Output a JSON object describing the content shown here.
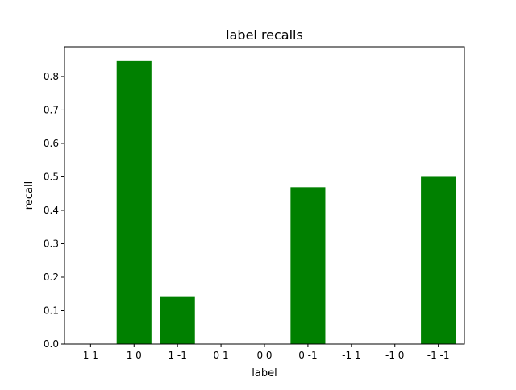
{
  "chart_data": {
    "type": "bar",
    "title": "label recalls",
    "xlabel": "label",
    "ylabel": "recall",
    "categories": [
      "1 1",
      "1 0",
      "1 -1",
      "0 1",
      "0 0",
      "0 -1",
      "-1 1",
      "-1 0",
      "-1 -1"
    ],
    "values": [
      0.0,
      0.846,
      0.143,
      0.0,
      0.0,
      0.469,
      0.0,
      0.0,
      0.5
    ],
    "ylim": [
      0,
      0.889
    ],
    "yticks": [
      0.0,
      0.1,
      0.2,
      0.3,
      0.4,
      0.5,
      0.6,
      0.7,
      0.8
    ],
    "ytick_labels": [
      "0.0",
      "0.1",
      "0.2",
      "0.3",
      "0.4",
      "0.5",
      "0.6",
      "0.7",
      "0.8"
    ],
    "bar_color": "#008000",
    "grid": false,
    "legend": "none"
  }
}
